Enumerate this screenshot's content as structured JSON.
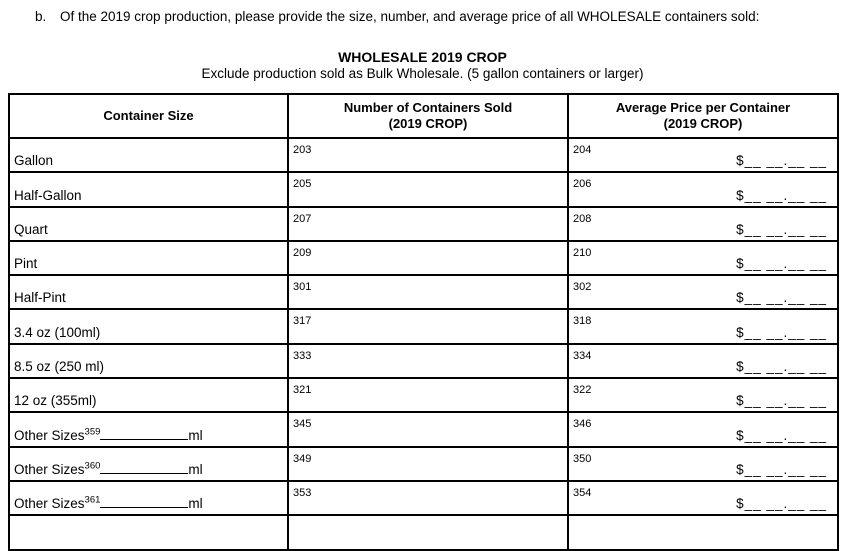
{
  "question": {
    "label": "b.",
    "text": "Of the 2019 crop production, please provide the size, number, and average price of all WHOLESALE containers sold:"
  },
  "table": {
    "title": "WHOLESALE 2019 CROP",
    "subtitle": "Exclude production sold as Bulk Wholesale. (5 gallon containers or larger)",
    "headers": [
      {
        "line1": "Container Size",
        "line2": ""
      },
      {
        "line1": "Number of Containers Sold",
        "line2": "(2019 CROP)"
      },
      {
        "line1": "Average Price per Container",
        "line2": "(2019 CROP)"
      }
    ],
    "price_placeholder": "$__ __.__ __",
    "rows": [
      {
        "size": "Gallon",
        "superscript": "",
        "unit": "",
        "number_code": "203",
        "price_code": "204"
      },
      {
        "size": "Half-Gallon",
        "superscript": "",
        "unit": "",
        "number_code": "205",
        "price_code": "206"
      },
      {
        "size": "Quart",
        "superscript": "",
        "unit": "",
        "number_code": "207",
        "price_code": "208"
      },
      {
        "size": "Pint",
        "superscript": "",
        "unit": "",
        "number_code": "209",
        "price_code": "210"
      },
      {
        "size": "Half-Pint",
        "superscript": "",
        "unit": "",
        "number_code": "301",
        "price_code": "302"
      },
      {
        "size": "3.4 oz (100ml)",
        "superscript": "",
        "unit": "",
        "number_code": "317",
        "price_code": "318"
      },
      {
        "size": "8.5 oz (250 ml)",
        "superscript": "",
        "unit": "",
        "number_code": "333",
        "price_code": "334"
      },
      {
        "size": "12 oz (355ml)",
        "superscript": "",
        "unit": "",
        "number_code": "321",
        "price_code": "322"
      },
      {
        "size": "Other Sizes",
        "superscript": "359",
        "unit": "ml",
        "number_code": "345",
        "price_code": "346"
      },
      {
        "size": "Other Sizes",
        "superscript": "360",
        "unit": "ml",
        "number_code": "349",
        "price_code": "350"
      },
      {
        "size": "Other Sizes",
        "superscript": "361",
        "unit": "ml",
        "number_code": "353",
        "price_code": "354"
      }
    ]
  },
  "colors": {
    "text": "#000000",
    "border": "#000000",
    "background": "#ffffff"
  }
}
